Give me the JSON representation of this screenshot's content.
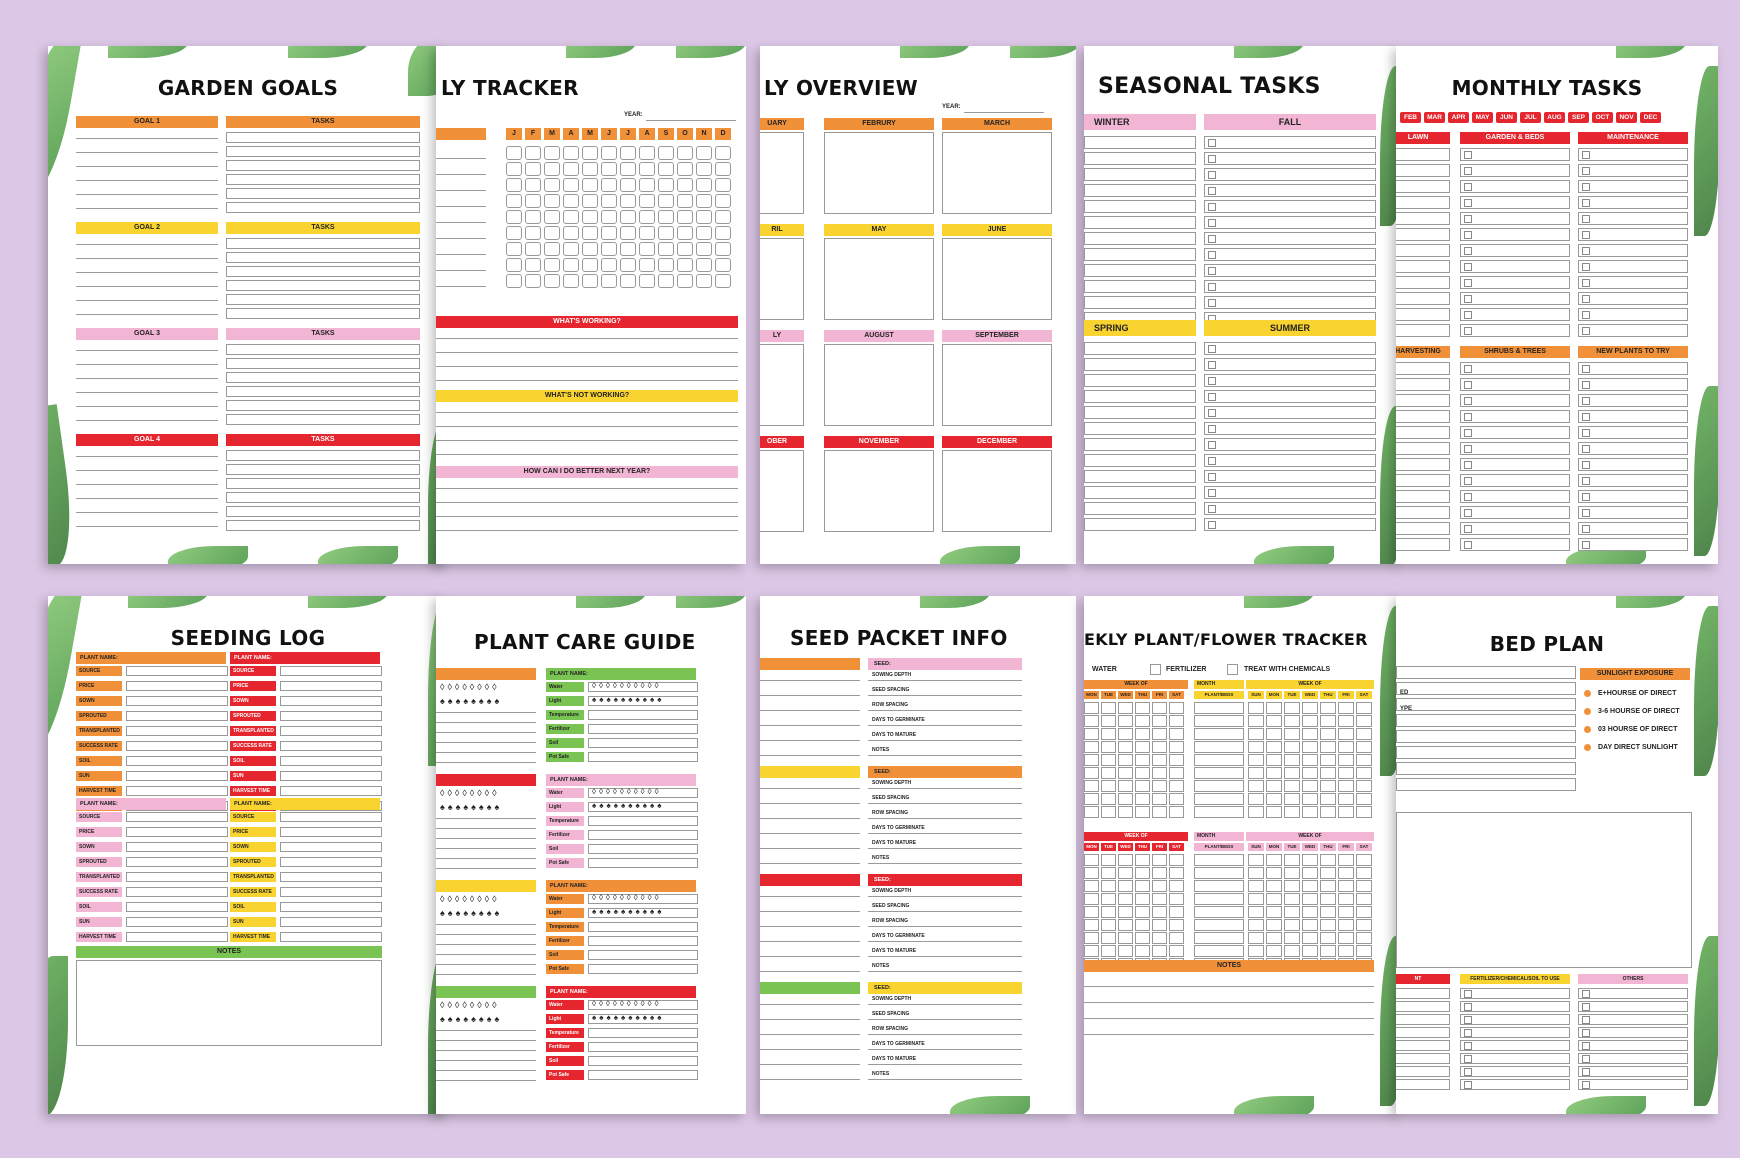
{
  "colors": {
    "background": "#dcc7e6",
    "orange": "#f0913a",
    "yellow": "#f9d330",
    "pink": "#f2b5d4",
    "red": "#e5262e",
    "green": "#79c452"
  },
  "pages": {
    "garden_goals": {
      "title": "GARDEN GOALS",
      "goals": [
        "GOAL 1",
        "GOAL 2",
        "GOAL 3",
        "GOAL 4"
      ],
      "tasks": "TASKS"
    },
    "yearly_tracker": {
      "title": "LY TRACKER",
      "year": "YEAR:",
      "months": [
        "J",
        "F",
        "M",
        "A",
        "M",
        "J",
        "J",
        "A",
        "S",
        "O",
        "N",
        "D"
      ],
      "q1": "WHAT'S WORKING?",
      "q2": "WHAT'S NOT WORKING?",
      "q3": "HOW CAN I DO BETTER NEXT YEAR?"
    },
    "overview": {
      "title": "LY OVERVIEW",
      "year": "YEAR:",
      "months": [
        "UARY",
        "FEBRURY",
        "MARCH",
        "RIL",
        "MAY",
        "JUNE",
        "LY",
        "AUGUST",
        "SEPTEMBER",
        "OBER",
        "NOVEMBER",
        "DECEMBER"
      ]
    },
    "seasonal": {
      "title": "SEASONAL TASKS",
      "seasons": [
        "WINTER",
        "FALL",
        "SPRING",
        "SUMMER"
      ]
    },
    "monthly": {
      "title": "MONTHLY TASKS",
      "months": [
        "FEB",
        "MAR",
        "APR",
        "MAY",
        "JUN",
        "JUL",
        "AUG",
        "SEP",
        "OCT",
        "NOV",
        "DEC"
      ],
      "cats": [
        "LAWN",
        "GARDEN & BEDS",
        "MAINTENANCE",
        "HARVESTING",
        "SHRUBS & TREES",
        "NEW PLANTS TO TRY"
      ]
    },
    "seeding": {
      "title": "SEEDING LOG",
      "plant_name": "PLANT NAME:",
      "fields": [
        "SOURCE",
        "PRICE",
        "SOWN",
        "SPROUTED",
        "TRANSPLANTED",
        "SUCCESS RATE",
        "SOIL",
        "SUN",
        "HARVEST TIME",
        "NOTES"
      ],
      "notes": "NOTES"
    },
    "care": {
      "title": "PLANT CARE GUIDE",
      "plant_name": "PLANT NAME:",
      "fields": [
        "Water",
        "Light",
        "Temperature",
        "Fertilizer",
        "Soil",
        "Pot Safe"
      ]
    },
    "seed_packet": {
      "title": "SEED PACKET INFO",
      "seed": "SEED:",
      "fields": [
        "SOWING DEPTH",
        "SEED SPACING",
        "ROW SPACING",
        "DAYS TO GERMINATE",
        "DAYS TO MATURE",
        "NOTES"
      ]
    },
    "weekly": {
      "title": "EKLY PLANT/FLOWER TRACKER",
      "water": "WATER",
      "fertilizer": "FERTILIZER",
      "chemicals": "TREAT WITH CHEMICALS",
      "week_of": "WEEK OF",
      "month": "MONTH",
      "plant_beds": "PLANT/BEDS",
      "days": [
        "MON",
        "TUE",
        "WED",
        "THU",
        "FRI",
        "SAT"
      ],
      "days_full": [
        "SUN",
        "MON",
        "TUE",
        "WED",
        "THU",
        "FRI",
        "SAT"
      ],
      "notes": "NOTES"
    },
    "bed_plan": {
      "title": "BED PLAN",
      "sunlight": "SUNLIGHT EXPOSURE",
      "options": [
        "E+HOURSE OF DIRECT",
        "3-6 HOURSE OF DIRECT",
        "03 HOURSE OF DIRECT",
        "DAY DIRECT SUNLIGHT"
      ],
      "side": [
        "ED",
        "YPE"
      ],
      "cols": [
        "NT",
        "FERTILIZER/CHEMICAL/SOIL TO USE",
        "OTHERS"
      ]
    }
  }
}
